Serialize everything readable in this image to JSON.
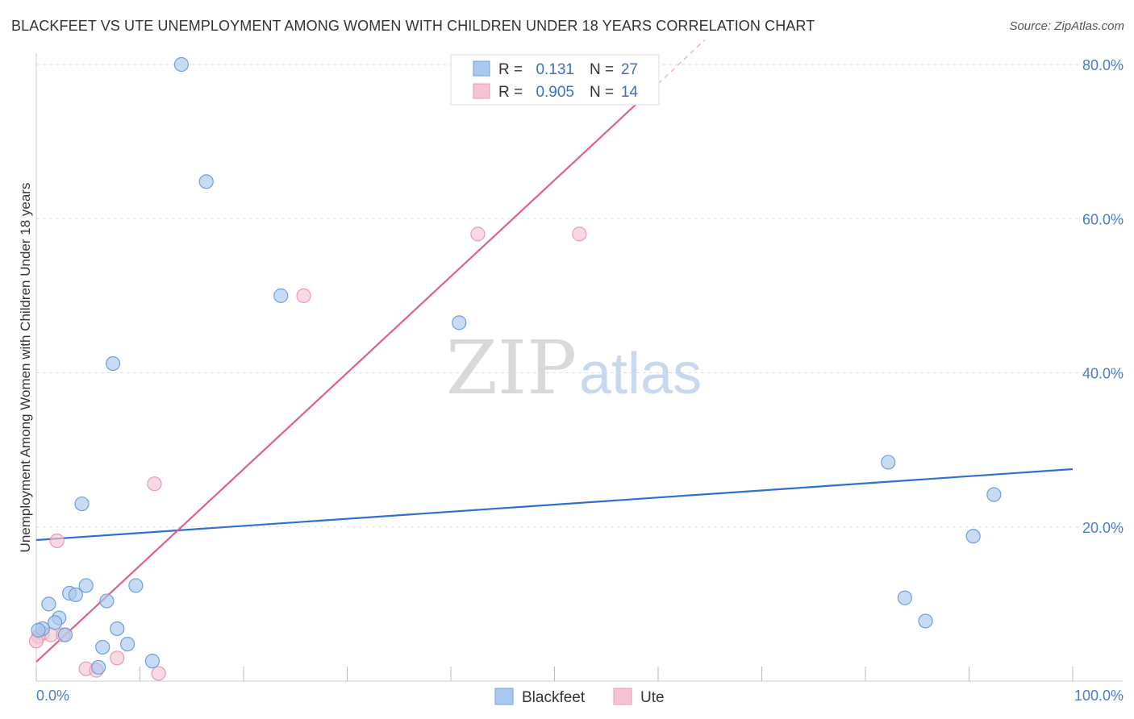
{
  "chart_data": {
    "type": "scatter",
    "title": "BLACKFEET VS UTE UNEMPLOYMENT AMONG WOMEN WITH CHILDREN UNDER 18 YEARS CORRELATION CHART",
    "source": "Source: ZipAtlas.com",
    "xlabel": "",
    "ylabel": "Unemployment Among Women with Children Under 18 years",
    "xlim": [
      0,
      100
    ],
    "ylim": [
      0,
      80
    ],
    "x_tick_labels": [
      {
        "value": 0,
        "label": "0.0%"
      },
      {
        "value": 100,
        "label": "100.0%"
      }
    ],
    "y_tick_labels": [
      {
        "value": 20,
        "label": "20.0%"
      },
      {
        "value": 40,
        "label": "40.0%"
      },
      {
        "value": 60,
        "label": "60.0%"
      },
      {
        "value": 80,
        "label": "80.0%"
      }
    ],
    "grid": true,
    "watermark": {
      "zip": "ZIP",
      "atlas": "atlas"
    },
    "legend": {
      "placement": "top-center",
      "rows": [
        {
          "r_label": "R =",
          "r_value": "0.131",
          "n_label": "N =",
          "n_value": "27"
        },
        {
          "r_label": "R =",
          "r_value": "0.905",
          "n_label": "N =",
          "n_value": "14"
        }
      ]
    },
    "series": [
      {
        "name": "Blackfeet",
        "color": "#a9c8ef",
        "edge_color": "#6f9fd8",
        "line_color": "#2f6fd0",
        "trend": {
          "x0": 0,
          "y0": 18.3,
          "x1": 100,
          "y1": 27.5
        },
        "points": [
          {
            "x": 14.0,
            "y": 80.0
          },
          {
            "x": 16.4,
            "y": 64.8
          },
          {
            "x": 23.6,
            "y": 50.0
          },
          {
            "x": 40.8,
            "y": 46.5
          },
          {
            "x": 7.4,
            "y": 41.2
          },
          {
            "x": 82.2,
            "y": 28.4
          },
          {
            "x": 92.4,
            "y": 24.2
          },
          {
            "x": 4.4,
            "y": 23.0
          },
          {
            "x": 90.4,
            "y": 18.8
          },
          {
            "x": 4.8,
            "y": 12.4
          },
          {
            "x": 9.6,
            "y": 12.4
          },
          {
            "x": 3.2,
            "y": 11.4
          },
          {
            "x": 3.8,
            "y": 11.2
          },
          {
            "x": 83.8,
            "y": 10.8
          },
          {
            "x": 6.8,
            "y": 10.4
          },
          {
            "x": 1.2,
            "y": 10.0
          },
          {
            "x": 2.2,
            "y": 8.2
          },
          {
            "x": 85.8,
            "y": 7.8
          },
          {
            "x": 1.8,
            "y": 7.6
          },
          {
            "x": 0.6,
            "y": 6.8
          },
          {
            "x": 0.2,
            "y": 6.6
          },
          {
            "x": 7.8,
            "y": 6.8
          },
          {
            "x": 2.8,
            "y": 6.0
          },
          {
            "x": 8.8,
            "y": 4.8
          },
          {
            "x": 6.4,
            "y": 4.4
          },
          {
            "x": 11.2,
            "y": 2.6
          },
          {
            "x": 6.0,
            "y": 1.8
          }
        ]
      },
      {
        "name": "Ute",
        "color": "#f6c4d2",
        "edge_color": "#e89ab0",
        "line_color": "#e0608a",
        "trend": {
          "x0": 0,
          "y0": 2.5,
          "x1": 60,
          "y1": 77.5
        },
        "trend_dashed_to": {
          "x": 64.5,
          "y": 83.2
        },
        "points": [
          {
            "x": 42.6,
            "y": 58.0
          },
          {
            "x": 52.4,
            "y": 58.0
          },
          {
            "x": 25.8,
            "y": 50.0
          },
          {
            "x": 11.4,
            "y": 25.6
          },
          {
            "x": 2.0,
            "y": 18.2
          },
          {
            "x": 0.6,
            "y": 6.2
          },
          {
            "x": 1.4,
            "y": 6.0
          },
          {
            "x": 2.6,
            "y": 6.0
          },
          {
            "x": 0.2,
            "y": 5.8
          },
          {
            "x": 7.8,
            "y": 3.0
          },
          {
            "x": 4.8,
            "y": 1.6
          },
          {
            "x": 5.8,
            "y": 1.4
          },
          {
            "x": 11.8,
            "y": 1.0
          },
          {
            "x": 0.0,
            "y": 5.2
          }
        ]
      }
    ]
  }
}
